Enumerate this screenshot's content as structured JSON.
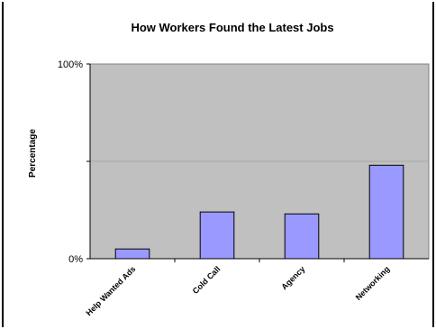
{
  "chart_data": {
    "type": "bar",
    "title": "How Workers Found the Latest Jobs",
    "xlabel": "",
    "ylabel": "Percentage",
    "categories": [
      "Help Wanted Ads",
      "Cold Call",
      "Agency",
      "Networking"
    ],
    "values": [
      5,
      24,
      23,
      48
    ],
    "ylim": [
      0,
      100
    ],
    "yticks": [
      {
        "value": 0,
        "label": "0%"
      },
      {
        "value": 50,
        "label": ""
      },
      {
        "value": 100,
        "label": "100%"
      }
    ],
    "grid": true,
    "legend": "none",
    "colors": {
      "bar_fill": "#9999ff",
      "bar_stroke": "#000000",
      "plot_background": "#c0c0c0",
      "gridline": "#a6a6a6"
    }
  }
}
